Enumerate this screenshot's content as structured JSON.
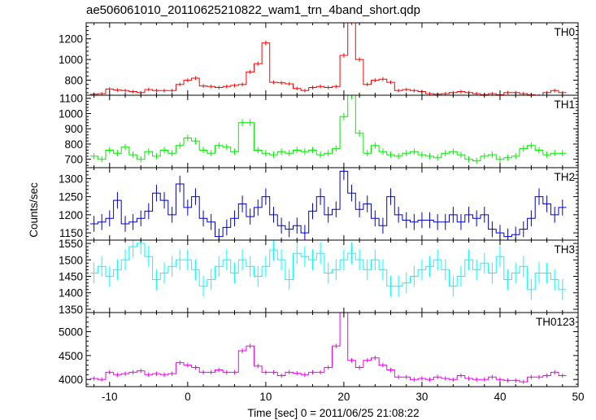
{
  "chart_data": {
    "type": "line",
    "title": "ae506061010_20110625210822_wam1_trn_4band_short.qdp",
    "xlabel": "Time [sec] 0 = 2011/06/25 21:08:22",
    "ylabel": "Counts/sec",
    "xlim": [
      -13,
      50
    ],
    "xticks": [
      -10,
      0,
      10,
      20,
      30,
      40,
      50
    ],
    "x": [
      -12.0,
      -11.0,
      -10.0,
      -9.0,
      -8.0,
      -7.0,
      -6.0,
      -5.0,
      -4.0,
      -3.0,
      -2.0,
      -1.0,
      0.0,
      1.0,
      2.0,
      3.0,
      4.0,
      5.0,
      6.0,
      7.0,
      8.0,
      9.0,
      10.0,
      11.0,
      12.0,
      13.0,
      14.0,
      15.0,
      16.0,
      17.0,
      18.0,
      19.0,
      20.0,
      21.0,
      22.0,
      23.0,
      24.0,
      25.0,
      26.0,
      27.0,
      28.0,
      29.0,
      30.0,
      31.0,
      32.0,
      33.0,
      34.0,
      35.0,
      36.0,
      37.0,
      38.0,
      39.0,
      40.0,
      41.0,
      42.0,
      43.0,
      44.0,
      45.0,
      46.0,
      47.0,
      48.0
    ],
    "panels": [
      {
        "label": "TH0",
        "color": "#ff0000",
        "ylim": [
          655,
          1355
        ],
        "yticks": [
          800,
          1000,
          1200
        ],
        "values": [
          665,
          670,
          715,
          705,
          700,
          690,
          680,
          710,
          700,
          700,
          700,
          760,
          800,
          820,
          745,
          740,
          730,
          740,
          750,
          760,
          880,
          960,
          1160,
          780,
          775,
          765,
          720,
          700,
          730,
          740,
          730,
          740,
          1040,
          1360,
          1000,
          760,
          800,
          810,
          780,
          700,
          710,
          700,
          690,
          670,
          665,
          670,
          680,
          690,
          680,
          670,
          660,
          670,
          660,
          680,
          680,
          670,
          660,
          650,
          680,
          700,
          680
        ],
        "errors": [
          16,
          16,
          17,
          17,
          17,
          17,
          17,
          17,
          17,
          17,
          17,
          18,
          18,
          19,
          18,
          18,
          18,
          18,
          18,
          18,
          20,
          21,
          23,
          18,
          18,
          18,
          18,
          17,
          18,
          18,
          18,
          18,
          21,
          25,
          21,
          18,
          19,
          19,
          18,
          17,
          17,
          17,
          17,
          17,
          16,
          17,
          17,
          17,
          17,
          17,
          16,
          17,
          16,
          17,
          17,
          17,
          16,
          16,
          17,
          17,
          17
        ]
      },
      {
        "label": "TH1",
        "color": "#00ee00",
        "ylim": [
          645,
          1120
        ],
        "yticks": [
          700,
          800,
          900,
          1000,
          1100
        ],
        "values": [
          720,
          700,
          760,
          740,
          780,
          730,
          700,
          750,
          720,
          760,
          740,
          790,
          840,
          820,
          760,
          740,
          790,
          780,
          750,
          940,
          940,
          760,
          740,
          730,
          750,
          740,
          760,
          750,
          760,
          730,
          740,
          770,
          980,
          1120,
          870,
          740,
          790,
          750,
          730,
          720,
          740,
          750,
          730,
          720,
          710,
          740,
          750,
          730,
          700,
          690,
          720,
          730,
          700,
          710,
          720,
          770,
          790,
          760,
          730,
          740,
          740
        ],
        "errors": [
          20,
          20,
          21,
          21,
          21,
          21,
          20,
          21,
          20,
          21,
          21,
          21,
          22,
          22,
          21,
          21,
          21,
          21,
          21,
          23,
          23,
          21,
          21,
          21,
          21,
          21,
          21,
          21,
          21,
          21,
          21,
          21,
          24,
          25,
          23,
          21,
          21,
          21,
          21,
          20,
          21,
          21,
          21,
          20,
          20,
          21,
          21,
          21,
          20,
          20,
          20,
          21,
          20,
          20,
          20,
          21,
          21,
          21,
          21,
          21,
          21
        ]
      },
      {
        "label": "TH2",
        "color": "#0000cc",
        "ylim": [
          1130,
          1330
        ],
        "yticks": [
          1150,
          1200,
          1250,
          1300
        ],
        "values": [
          1175,
          1180,
          1190,
          1240,
          1175,
          1180,
          1190,
          1210,
          1260,
          1240,
          1200,
          1285,
          1220,
          1250,
          1190,
          1180,
          1140,
          1165,
          1190,
          1230,
          1195,
          1220,
          1250,
          1200,
          1170,
          1160,
          1170,
          1150,
          1210,
          1250,
          1200,
          1215,
          1320,
          1260,
          1215,
          1230,
          1190,
          1170,
          1250,
          1200,
          1185,
          1180,
          1185,
          1185,
          1180,
          1180,
          1200,
          1180,
          1200,
          1190,
          1200,
          1160,
          1150,
          1140,
          1145,
          1160,
          1190,
          1250,
          1230,
          1200,
          1220
        ],
        "errors": [
          22,
          22,
          22,
          23,
          22,
          22,
          22,
          22,
          23,
          23,
          22,
          23,
          22,
          23,
          22,
          22,
          22,
          22,
          22,
          23,
          22,
          22,
          23,
          22,
          22,
          22,
          22,
          22,
          22,
          23,
          22,
          22,
          24,
          23,
          22,
          23,
          22,
          22,
          23,
          22,
          22,
          22,
          22,
          22,
          22,
          22,
          22,
          22,
          22,
          22,
          22,
          22,
          22,
          22,
          22,
          22,
          22,
          23,
          23,
          22,
          22
        ]
      },
      {
        "label": "TH3",
        "color": "#00ffff",
        "ylim": [
          1340,
          1560
        ],
        "yticks": [
          1350,
          1400,
          1450,
          1500,
          1550
        ],
        "values": [
          1460,
          1480,
          1450,
          1470,
          1500,
          1540,
          1550,
          1510,
          1440,
          1460,
          1480,
          1500,
          1500,
          1470,
          1420,
          1440,
          1480,
          1500,
          1460,
          1500,
          1480,
          1450,
          1480,
          1530,
          1500,
          1440,
          1520,
          1510,
          1500,
          1520,
          1460,
          1470,
          1500,
          1520,
          1500,
          1470,
          1500,
          1470,
          1420,
          1420,
          1430,
          1450,
          1470,
          1480,
          1500,
          1470,
          1420,
          1450,
          1500,
          1470,
          1490,
          1460,
          1510,
          1440,
          1460,
          1480,
          1410,
          1460,
          1460,
          1440,
          1410
        ],
        "errors": [
          32,
          32,
          32,
          32,
          32,
          33,
          33,
          32,
          32,
          32,
          32,
          32,
          32,
          32,
          32,
          32,
          32,
          32,
          32,
          32,
          32,
          32,
          32,
          33,
          32,
          32,
          33,
          32,
          32,
          33,
          32,
          32,
          32,
          33,
          32,
          32,
          32,
          32,
          32,
          32,
          32,
          32,
          32,
          32,
          32,
          32,
          32,
          32,
          32,
          32,
          32,
          32,
          32,
          32,
          32,
          32,
          32,
          32,
          32,
          32,
          32
        ]
      },
      {
        "label": "TH0123",
        "color": "#ee00ee",
        "ylim": [
          3850,
          5400
        ],
        "yticks": [
          4000,
          4500,
          5000
        ],
        "values": [
          4020,
          4000,
          4150,
          4100,
          4120,
          4150,
          4180,
          4100,
          4120,
          4100,
          4120,
          4350,
          4300,
          4250,
          4150,
          4150,
          4200,
          4150,
          4150,
          4600,
          4700,
          4280,
          4150,
          4150,
          4080,
          4150,
          4130,
          4100,
          4150,
          4150,
          4250,
          4700,
          5400,
          4400,
          4250,
          4400,
          4450,
          4300,
          4200,
          4050,
          4050,
          4000,
          4020,
          4000,
          4050,
          4020,
          4000,
          4080,
          4020,
          4000,
          4000,
          4050,
          4000,
          3980,
          3980,
          3950,
          4050,
          4050,
          4080,
          4150,
          4080
        ],
        "errors": [
          45,
          45,
          46,
          45,
          45,
          46,
          46,
          45,
          45,
          45,
          45,
          47,
          46,
          46,
          46,
          46,
          46,
          46,
          46,
          48,
          48,
          46,
          46,
          46,
          45,
          46,
          46,
          45,
          46,
          46,
          46,
          48,
          52,
          47,
          46,
          47,
          47,
          46,
          46,
          45,
          45,
          45,
          45,
          45,
          45,
          45,
          45,
          45,
          45,
          45,
          45,
          45,
          45,
          45,
          45,
          44,
          45,
          45,
          45,
          46,
          45
        ]
      }
    ]
  }
}
